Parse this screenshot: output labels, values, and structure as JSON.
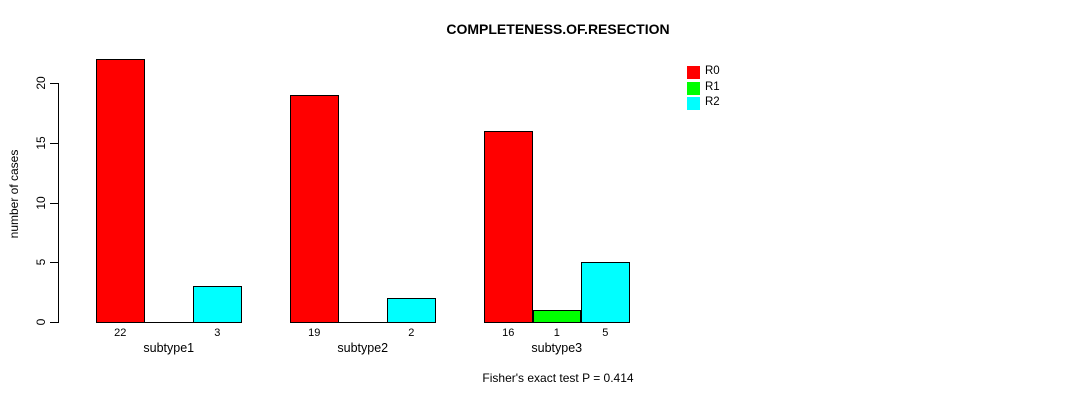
{
  "chart_data": {
    "type": "bar",
    "grouped": true,
    "title": "COMPLETENESS.OF.RESECTION",
    "xlabel": "",
    "ylabel": "number of cases",
    "categories": [
      "subtype1",
      "subtype2",
      "subtype3"
    ],
    "series": [
      {
        "name": "R0",
        "color": "#ff0000",
        "values": [
          22,
          19,
          16
        ]
      },
      {
        "name": "R1",
        "color": "#00ff00",
        "values": [
          0,
          0,
          1
        ]
      },
      {
        "name": "R2",
        "color": "#00ffff",
        "values": [
          3,
          2,
          5
        ]
      }
    ],
    "bar_value_labels": [
      [
        "22",
        "",
        "3"
      ],
      [
        "19",
        "",
        "2"
      ],
      [
        "16",
        "1",
        "5"
      ]
    ],
    "yticks": [
      0,
      5,
      10,
      15,
      20
    ],
    "ylim": [
      0,
      22
    ],
    "grid": false,
    "legend_position": "top-right",
    "legend_entries": [
      "R0",
      "R1",
      "R2"
    ],
    "annotation": "Fisher's exact test P = 0.414",
    "colors": {
      "bar_border": "#000000",
      "axis": "#000000",
      "text": "#000000",
      "background": "#ffffff"
    }
  }
}
